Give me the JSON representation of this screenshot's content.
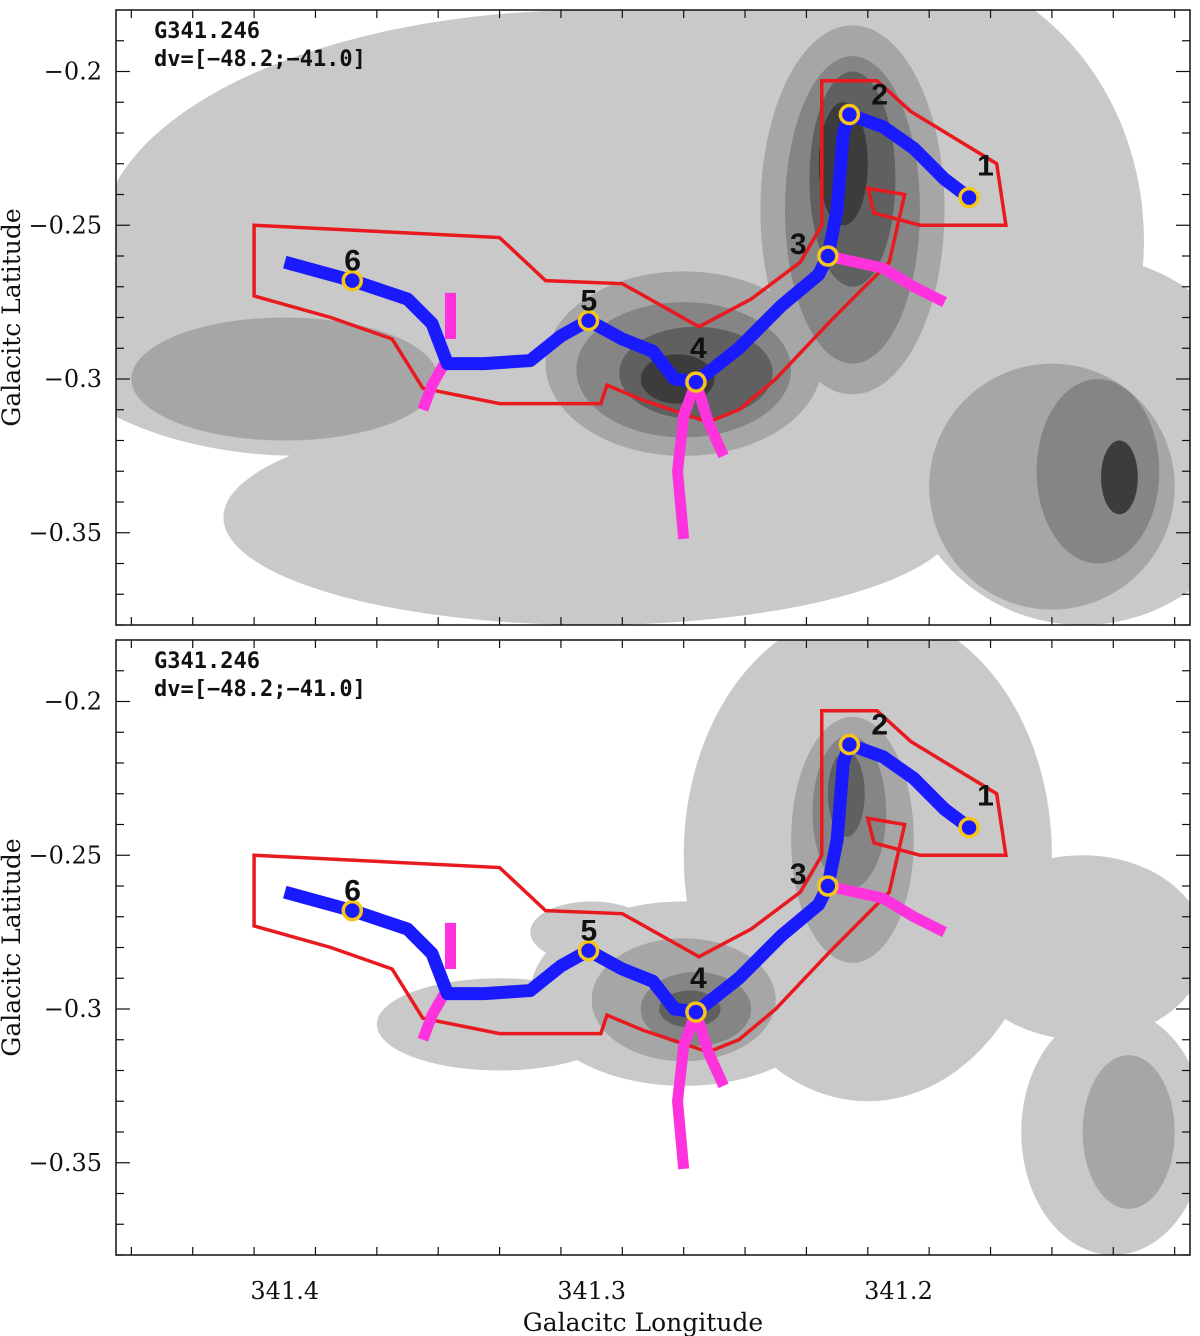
{
  "chart_data": [
    {
      "type": "contour",
      "panel_label": "G341.246",
      "velocity_range": "dv=[−48.2;−41.0]",
      "ylabel": "Galacitc Latitude",
      "xlabel": "",
      "xlim": [
        341.455,
        341.105
      ],
      "ylim": [
        -0.38,
        -0.18
      ],
      "x_ticks": [],
      "y_ticks": [
        {
          "v": -0.2,
          "label": "−0.2"
        },
        {
          "v": -0.25,
          "label": "−0.25"
        },
        {
          "v": -0.3,
          "label": "−0.3"
        },
        {
          "v": -0.35,
          "label": "−0.35"
        }
      ],
      "shading": "extended",
      "fill_levels": [
        "#c9c9c9",
        "#a6a6a6",
        "#858585",
        "#606060",
        "#3c3c3c",
        "#232323"
      ],
      "outline_color": "#e8191f",
      "spine_color": "#1a1aff",
      "branch_color": "#ff33dd",
      "node_color": "#f5c518",
      "nodes": [
        {
          "label": "1",
          "l": 341.177,
          "b": -0.241
        },
        {
          "label": "2",
          "l": 341.216,
          "b": -0.214
        },
        {
          "label": "3",
          "l": 341.223,
          "b": -0.26
        },
        {
          "label": "4",
          "l": 341.266,
          "b": -0.301
        },
        {
          "label": "5",
          "l": 341.301,
          "b": -0.281
        },
        {
          "label": "6",
          "l": 341.378,
          "b": -0.268
        }
      ]
    },
    {
      "type": "contour",
      "panel_label": "G341.246",
      "velocity_range": "dv=[−48.2;−41.0]",
      "ylabel": "Galacitc Latitude",
      "xlabel": "Galacitc Longitude",
      "xlim": [
        341.455,
        341.105
      ],
      "ylim": [
        -0.38,
        -0.18
      ],
      "x_ticks": [
        {
          "v": 341.4,
          "label": "341.4"
        },
        {
          "v": 341.3,
          "label": "341.3"
        },
        {
          "v": 341.2,
          "label": "341.2"
        }
      ],
      "y_ticks": [
        {
          "v": -0.2,
          "label": "−0.2"
        },
        {
          "v": -0.25,
          "label": "−0.25"
        },
        {
          "v": -0.3,
          "label": "−0.3"
        },
        {
          "v": -0.35,
          "label": "−0.35"
        }
      ],
      "shading": "compact",
      "fill_levels": [
        "#c9c9c9",
        "#a6a6a6",
        "#858585",
        "#606060",
        "#3c3c3c",
        "#232323"
      ],
      "outline_color": "#e8191f",
      "spine_color": "#1a1aff",
      "branch_color": "#ff33dd",
      "node_color": "#f5c518",
      "nodes": [
        {
          "label": "1",
          "l": 341.177,
          "b": -0.241
        },
        {
          "label": "2",
          "l": 341.216,
          "b": -0.214
        },
        {
          "label": "3",
          "l": 341.223,
          "b": -0.26
        },
        {
          "label": "4",
          "l": 341.266,
          "b": -0.301
        },
        {
          "label": "5",
          "l": 341.301,
          "b": -0.281
        },
        {
          "label": "6",
          "l": 341.378,
          "b": -0.268
        }
      ]
    }
  ]
}
